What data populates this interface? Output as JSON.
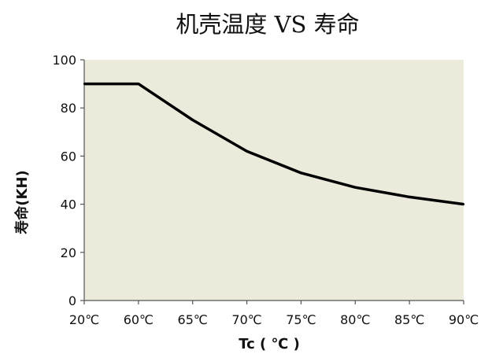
{
  "chart_data": {
    "type": "line",
    "title": "机壳温度 VS 寿命",
    "xlabel": "Tc ( ℃ )",
    "ylabel": "寿命(KH)",
    "categories": [
      "20℃",
      "60℃",
      "65℃",
      "70℃",
      "75℃",
      "80℃",
      "85℃",
      "90℃"
    ],
    "series": [
      {
        "values": [
          90,
          90,
          75,
          62,
          53,
          47,
          43,
          40
        ]
      }
    ],
    "ylim": [
      0,
      100
    ],
    "yticks": [
      "0",
      "20",
      "40",
      "60",
      "80",
      "100"
    ],
    "grid": false,
    "legend": "none",
    "colors": {
      "plot_background": "#eceadb",
      "line": "#000000",
      "axis": "#555555"
    }
  }
}
